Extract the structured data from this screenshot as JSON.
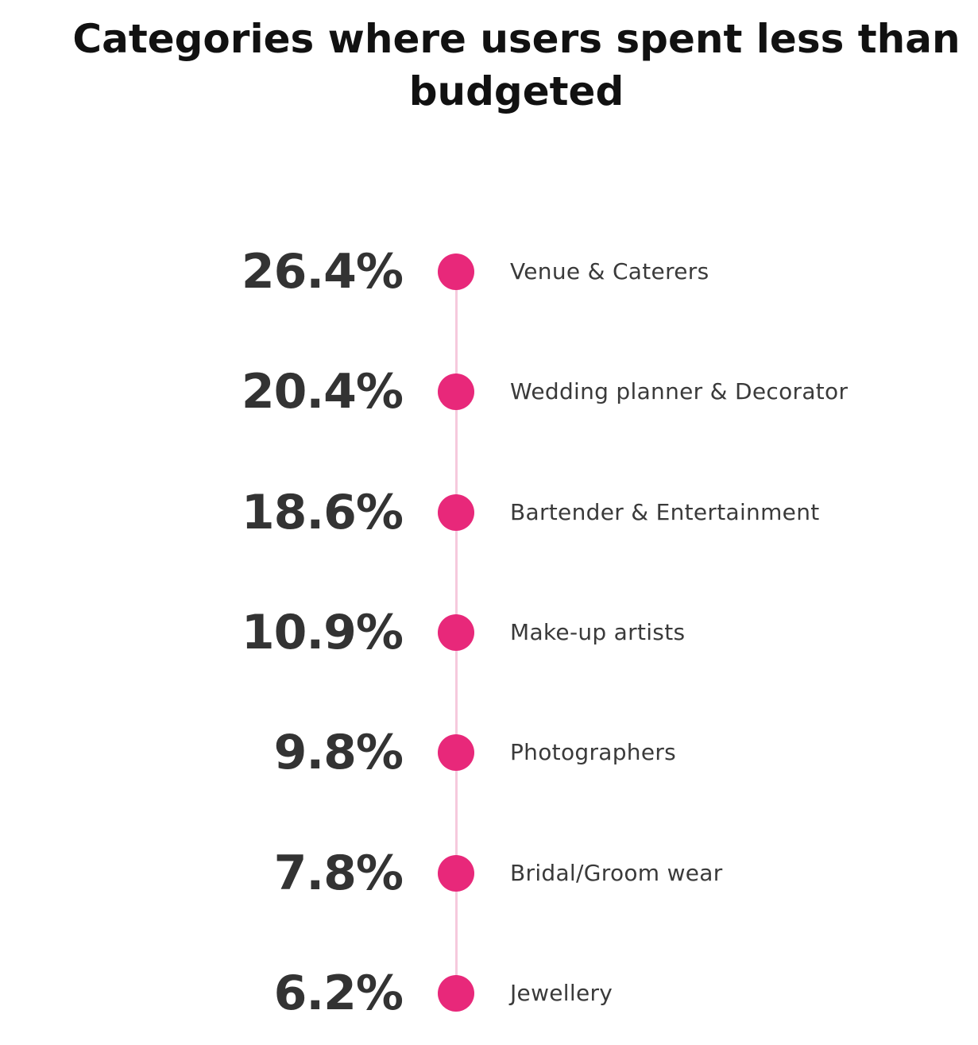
{
  "chart_data": {
    "type": "dot-timeline",
    "title": "Categories where users spent less than budgeted",
    "unit": "%",
    "categories": [
      "Venue & Caterers",
      "Wedding planner & Decorator",
      "Bartender & Entertainment",
      "Make-up artists",
      "Photographers",
      "Bridal/Groom wear",
      "Jewellery"
    ],
    "values": [
      26.4,
      20.4,
      18.6,
      10.9,
      9.8,
      7.8,
      6.2
    ],
    "value_labels": [
      "26.4%",
      "20.4%",
      "18.6%",
      "10.9%",
      "9.8%",
      "7.8%",
      "6.2%"
    ],
    "colors": {
      "dot": "#e8287a",
      "line": "#f6c9dd",
      "value_text": "#333333",
      "label_text": "#3a3a3a"
    }
  }
}
